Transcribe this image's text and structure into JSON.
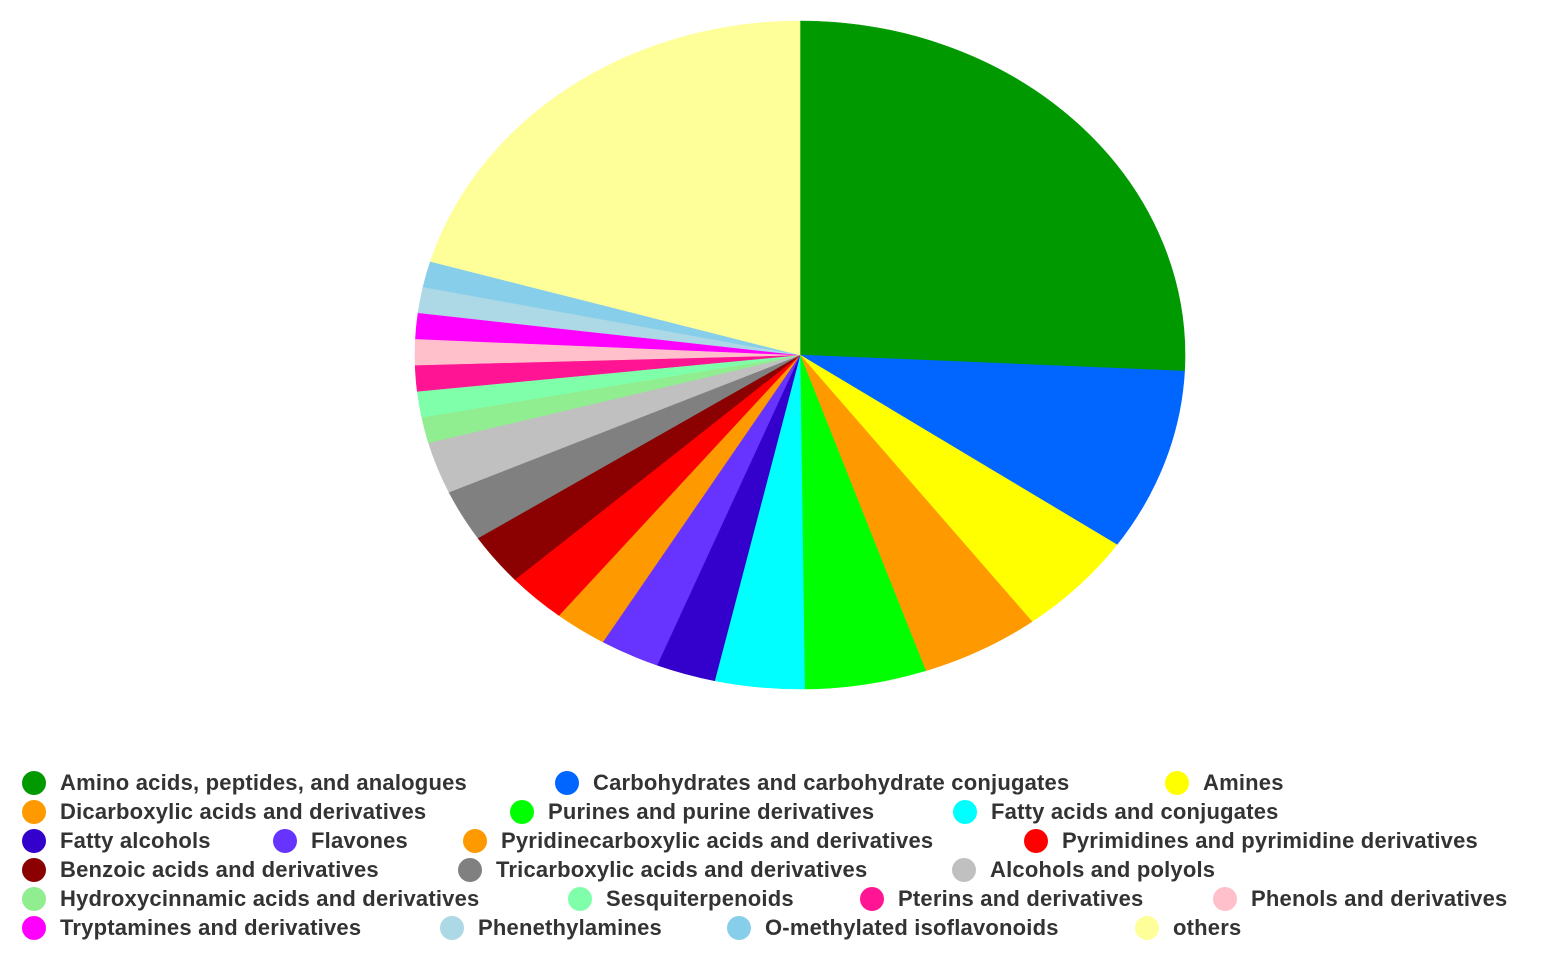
{
  "chart_data": {
    "type": "pie",
    "title": "",
    "legend_position": "bottom",
    "slices": [
      {
        "label": "Amino acids, peptides, and analogues",
        "value": 26.8,
        "color": "#009900"
      },
      {
        "label": "Carbohydrates and carbohydrate conjugates",
        "value": 9.2,
        "color": "#0066FF"
      },
      {
        "label": "Amines",
        "value": 5.3,
        "color": "#FFFF00"
      },
      {
        "label": "Dicarboxylic acids and derivatives",
        "value": 5.2,
        "color": "#FF9900"
      },
      {
        "label": "Purines and purine derivatives",
        "value": 5.3,
        "color": "#00FF00"
      },
      {
        "label": "Fatty acids and conjugates",
        "value": 3.9,
        "color": "#00FFFF"
      },
      {
        "label": "Fatty alcohols",
        "value": 2.6,
        "color": "#3300CC"
      },
      {
        "label": "Flavones",
        "value": 2.6,
        "color": "#6633FF"
      },
      {
        "label": "Pyridinecarboxylic acids and derivatives",
        "value": 2.3,
        "color": "#FF9900"
      },
      {
        "label": "Pyrimidines and pyrimidine derivatives",
        "value": 2.6,
        "color": "#FF0000"
      },
      {
        "label": "Benzoic acids and derivatives",
        "value": 2.6,
        "color": "#8B0000"
      },
      {
        "label": "Tricarboxylic acids and derivatives",
        "value": 2.6,
        "color": "#808080"
      },
      {
        "label": "Alcohols and polyols",
        "value": 2.6,
        "color": "#C0C0C0"
      },
      {
        "label": "Hydroxycinnamic acids and derivatives",
        "value": 1.3,
        "color": "#90EE90"
      },
      {
        "label": "Sesquiterpenoids",
        "value": 1.3,
        "color": "#80FFAA"
      },
      {
        "label": "Pterins and derivatives",
        "value": 1.3,
        "color": "#FF1493"
      },
      {
        "label": "Phenols and derivatives",
        "value": 1.3,
        "color": "#FFC0CB"
      },
      {
        "label": "Tryptamines and derivatives",
        "value": 1.3,
        "color": "#FF00FF"
      },
      {
        "label": "Phenethylamines",
        "value": 1.3,
        "color": "#ADD8E6"
      },
      {
        "label": "O-methylated isoflavonoids",
        "value": 1.3,
        "color": "#87CEEB"
      },
      {
        "label": "others",
        "value": 21.3,
        "color": "#FFFF99"
      }
    ]
  }
}
